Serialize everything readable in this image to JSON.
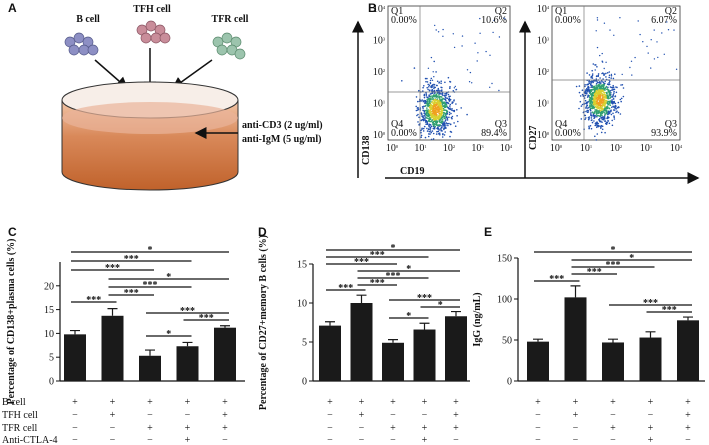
{
  "panel_labels": [
    "A",
    "B",
    "C",
    "D",
    "E"
  ],
  "diagram": {
    "cells": [
      "B cell",
      "TFH cell",
      "TFR cell"
    ],
    "reagents": [
      "anti-CD3 (2 ug/ml)",
      "anti-IgM (5 ug/ml)"
    ]
  },
  "flow": {
    "x_label": "CD19",
    "tick_base": "10",
    "tick_exponents": [
      "0",
      "1",
      "2",
      "3",
      "4"
    ],
    "plots": [
      {
        "y_label": "CD138",
        "quadrants": [
          {
            "name": "Q1",
            "value": "0.00%"
          },
          {
            "name": "Q2",
            "value": "10.6%"
          },
          {
            "name": "Q4",
            "value": "0.00%"
          },
          {
            "name": "Q3",
            "value": "89.4%"
          }
        ]
      },
      {
        "y_label": "CD27",
        "quadrants": [
          {
            "name": "Q1",
            "value": "0.00%"
          },
          {
            "name": "Q2",
            "value": "6.07%"
          },
          {
            "name": "Q4",
            "value": "0.00%"
          },
          {
            "name": "Q3",
            "value": "93.9%"
          }
        ]
      }
    ]
  },
  "condition_rows": [
    "B cell",
    "TFH cell",
    "TFR cell",
    "Anti-CTLA-4"
  ],
  "chart_data": [
    {
      "type": "bar",
      "y_label": "Percentage of CD138+plasma cells (%)",
      "categories": [
        null,
        null,
        null,
        null,
        null
      ],
      "values": [
        9.8,
        13.7,
        5.3,
        7.3,
        11.2
      ],
      "errors": [
        0.8,
        1.5,
        1.2,
        0.8,
        0.4
      ],
      "color": "#1a1a1a",
      "ylim": [
        0,
        25
      ],
      "yticks": [
        0,
        5,
        10,
        15,
        20
      ],
      "comparisons": [
        {
          "groups": [
            1,
            5
          ],
          "label": "*"
        },
        {
          "groups": [
            1,
            4
          ],
          "label": "***"
        },
        {
          "groups": [
            1,
            3
          ],
          "label": "***"
        },
        {
          "groups": [
            2,
            5
          ],
          "label": "*"
        },
        {
          "groups": [
            2,
            4
          ],
          "label": "***"
        },
        {
          "groups": [
            2,
            3
          ],
          "label": "***"
        },
        {
          "groups": [
            1,
            2
          ],
          "label": "***"
        },
        {
          "groups": [
            3,
            5
          ],
          "label": "***"
        },
        {
          "groups": [
            4,
            5
          ],
          "label": "***"
        },
        {
          "groups": [
            3,
            4
          ],
          "label": "*"
        }
      ],
      "conditions": [
        [
          "+",
          "+",
          "+",
          "+",
          "+"
        ],
        [
          "−",
          "+",
          "−",
          "−",
          "+"
        ],
        [
          "−",
          "−",
          "+",
          "+",
          "+"
        ],
        [
          "−",
          "−",
          "−",
          "+",
          "−"
        ]
      ]
    },
    {
      "type": "bar",
      "y_label": "Percentage of CD27+memory B cells (%)",
      "categories": [
        null,
        null,
        null,
        null,
        null
      ],
      "values": [
        7.1,
        10,
        4.9,
        6.6,
        8.3
      ],
      "errors": [
        0.5,
        1,
        0.4,
        0.8,
        0.6
      ],
      "color": "#1a1a1a",
      "ylim": [
        0,
        15
      ],
      "yticks": [
        0,
        5,
        10,
        15
      ],
      "comparisons": [
        {
          "groups": [
            1,
            5
          ],
          "label": "*"
        },
        {
          "groups": [
            1,
            4
          ],
          "label": "***"
        },
        {
          "groups": [
            1,
            3
          ],
          "label": "***"
        },
        {
          "groups": [
            2,
            5
          ],
          "label": "*"
        },
        {
          "groups": [
            2,
            4
          ],
          "label": "***"
        },
        {
          "groups": [
            2,
            3
          ],
          "label": "***"
        },
        {
          "groups": [
            1,
            2
          ],
          "label": "***"
        },
        {
          "groups": [
            3,
            5
          ],
          "label": "***"
        },
        {
          "groups": [
            4,
            5
          ],
          "label": "*"
        },
        {
          "groups": [
            3,
            4
          ],
          "label": "*"
        }
      ],
      "conditions": [
        [
          "+",
          "+",
          "+",
          "+",
          "+"
        ],
        [
          "−",
          "+",
          "−",
          "−",
          "+"
        ],
        [
          "−",
          "−",
          "+",
          "+",
          "+"
        ],
        [
          "−",
          "−",
          "−",
          "+",
          "−"
        ]
      ]
    },
    {
      "type": "bar",
      "y_label": "IgG (ng/mL)",
      "categories": [
        null,
        null,
        null,
        null,
        null
      ],
      "values": [
        48,
        102,
        47,
        53,
        74
      ],
      "errors": [
        3,
        14,
        4,
        7,
        4
      ],
      "color": "#1a1a1a",
      "ylim": [
        0,
        150
      ],
      "yticks": [
        0,
        50,
        100,
        150
      ],
      "comparisons": [
        {
          "groups": [
            1,
            5
          ],
          "label": "*"
        },
        {
          "groups": [
            2,
            5
          ],
          "label": "*"
        },
        {
          "groups": [
            2,
            4
          ],
          "label": "***"
        },
        {
          "groups": [
            2,
            3
          ],
          "label": "***"
        },
        {
          "groups": [
            1,
            2
          ],
          "label": "***"
        },
        {
          "groups": [
            3,
            5
          ],
          "label": "***"
        },
        {
          "groups": [
            4,
            5
          ],
          "label": "***"
        }
      ],
      "conditions": [
        [
          "+",
          "+",
          "+",
          "+",
          "+"
        ],
        [
          "−",
          "+",
          "−",
          "−",
          "+"
        ],
        [
          "−",
          "−",
          "+",
          "+",
          "+"
        ],
        [
          "−",
          "−",
          "−",
          "+",
          "−"
        ]
      ]
    }
  ]
}
